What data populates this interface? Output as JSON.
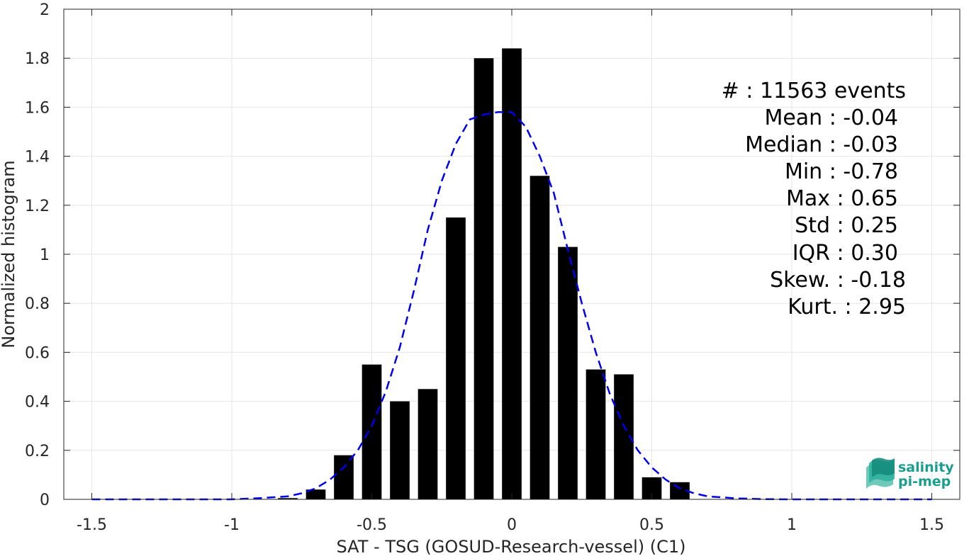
{
  "chart_data": {
    "type": "bar",
    "xlabel": "SAT - TSG (GOSUD-Research-vessel) (C1)",
    "ylabel": "Normalized histogram",
    "xlim": [
      -1.6,
      1.6
    ],
    "ylim": [
      0,
      2
    ],
    "grid": true,
    "bar_width": 0.07,
    "x_ticks": [
      -1.5,
      -1,
      -0.5,
      0,
      0.5,
      1,
      1.5
    ],
    "x_tick_labels": [
      "-1.5",
      "-1",
      "-0.5",
      "0",
      "0.5",
      "1",
      "1.5"
    ],
    "y_ticks": [
      0,
      0.2,
      0.4,
      0.6,
      0.8,
      1,
      1.2,
      1.4,
      1.6,
      1.8,
      2
    ],
    "y_tick_labels": [
      "0",
      "0.2",
      "0.4",
      "0.6",
      "0.8",
      "1",
      "1.2",
      "1.4",
      "1.6",
      "1.8",
      "2"
    ],
    "bars": {
      "x": [
        -0.8,
        -0.7,
        -0.6,
        -0.5,
        -0.4,
        -0.3,
        -0.2,
        -0.1,
        0.0,
        0.1,
        0.2,
        0.3,
        0.4,
        0.5,
        0.6
      ],
      "values": [
        0.005,
        0.04,
        0.18,
        0.55,
        0.4,
        0.45,
        1.15,
        1.8,
        1.84,
        1.32,
        1.03,
        0.53,
        0.51,
        0.09,
        0.07
      ]
    },
    "fit_curve": {
      "style": "dashed",
      "color": "#0000ee",
      "x": [
        -1.5,
        -1.2,
        -1.0,
        -0.9,
        -0.8,
        -0.75,
        -0.7,
        -0.65,
        -0.6,
        -0.55,
        -0.5,
        -0.45,
        -0.4,
        -0.35,
        -0.3,
        -0.25,
        -0.2,
        -0.15,
        -0.1,
        -0.05,
        0.0,
        0.05,
        0.1,
        0.15,
        0.2,
        0.25,
        0.3,
        0.35,
        0.4,
        0.45,
        0.5,
        0.55,
        0.6,
        0.65,
        0.7,
        0.8,
        0.9,
        1.0,
        1.2,
        1.5
      ],
      "y": [
        0.0,
        0.0,
        0.0,
        0.005,
        0.012,
        0.025,
        0.045,
        0.08,
        0.13,
        0.2,
        0.3,
        0.44,
        0.62,
        0.85,
        1.1,
        1.3,
        1.45,
        1.55,
        1.57,
        1.58,
        1.58,
        1.52,
        1.4,
        1.25,
        1.02,
        0.8,
        0.6,
        0.43,
        0.3,
        0.2,
        0.13,
        0.08,
        0.045,
        0.025,
        0.012,
        0.004,
        0.001,
        0.0,
        0.0,
        0.0
      ]
    },
    "stats": [
      "#  : 11563 events",
      "Mean : -0.04",
      "Median : -0.03",
      "Min : -0.78",
      "Max : 0.65",
      "Std : 0.25",
      "IQR : 0.30",
      "Skew. : -0.18",
      "Kurt. : 2.95"
    ]
  },
  "logo": {
    "line1": "salinity",
    "line2": "pi-mep",
    "color": "#1a9e8e"
  }
}
